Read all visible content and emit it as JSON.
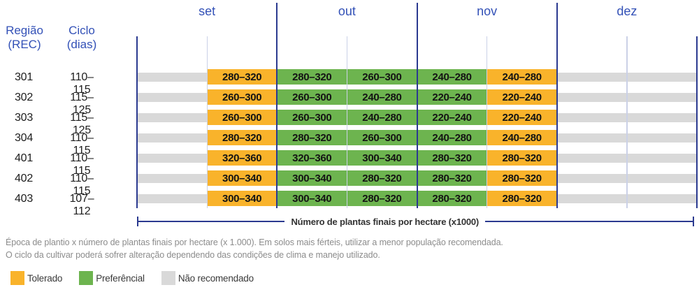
{
  "header": {
    "col1": {
      "line1": "Região",
      "line2": "(REC)"
    },
    "col2": {
      "line1": "Ciclo",
      "line2": "(dias)"
    }
  },
  "months": [
    "set",
    "out",
    "nov",
    "dez"
  ],
  "axis_label": "Número de plantas finais por hectare (x1000)",
  "footnotes": [
    "Época de plantio x número de plantas finais por hectare (x 1.000). Em solos mais férteis, utilizar a menor população recomendada.",
    "O ciclo da cultivar poderá sofrer alteração dependendo das condições de clima e manejo utilizado."
  ],
  "legend": [
    {
      "label": "Tolerado",
      "status": "tolerado"
    },
    {
      "label": "Preferêncial",
      "status": "preferencial"
    },
    {
      "label": "Não recomendado",
      "status": "nao_recomendado"
    }
  ],
  "colors": {
    "tolerado": "#F9B32B",
    "preferencial": "#6DB44F",
    "nao_recomendado": "#D9D9D9",
    "line_dark": "#2B3A90",
    "line_light": "#CBD1E7",
    "text_blue": "#3351B7"
  },
  "chart_data": {
    "type": "heatmap",
    "title": "Época de plantio x número de plantas finais por hectare",
    "x_axis": {
      "months": [
        "set",
        "out",
        "nov",
        "dez"
      ],
      "halves_per_month": 2
    },
    "unit_label": "Número de plantas finais por hectare (x1000)",
    "status_legend": [
      "Tolerado",
      "Preferêncial",
      "Não recomendado"
    ],
    "rows": [
      {
        "rec": "301",
        "ciclo": "110–115",
        "cells": [
          {
            "cols": "set1",
            "status": "nao_recomendado",
            "value": ""
          },
          {
            "cols": "set2",
            "status": "tolerado",
            "value": "280–320"
          },
          {
            "cols": "out1",
            "status": "preferencial",
            "value": "280–320"
          },
          {
            "cols": "out2",
            "status": "preferencial",
            "value": "260–300"
          },
          {
            "cols": "nov1",
            "status": "preferencial",
            "value": "240–280"
          },
          {
            "cols": "nov2",
            "status": "tolerado",
            "value": "240–280"
          },
          {
            "cols": "dez1-dez2",
            "status": "nao_recomendado",
            "value": ""
          }
        ]
      },
      {
        "rec": "302",
        "ciclo": "115–125",
        "cells": [
          {
            "cols": "set1",
            "status": "nao_recomendado",
            "value": ""
          },
          {
            "cols": "set2",
            "status": "tolerado",
            "value": "260–300"
          },
          {
            "cols": "out1",
            "status": "preferencial",
            "value": "260–300"
          },
          {
            "cols": "out2",
            "status": "preferencial",
            "value": "240–280"
          },
          {
            "cols": "nov1",
            "status": "preferencial",
            "value": "220–240"
          },
          {
            "cols": "nov2",
            "status": "tolerado",
            "value": "220–240"
          },
          {
            "cols": "dez1-dez2",
            "status": "nao_recomendado",
            "value": ""
          }
        ]
      },
      {
        "rec": "303",
        "ciclo": "115–125",
        "cells": [
          {
            "cols": "set1",
            "status": "nao_recomendado",
            "value": ""
          },
          {
            "cols": "set2",
            "status": "tolerado",
            "value": "260–300"
          },
          {
            "cols": "out1",
            "status": "preferencial",
            "value": "260–300"
          },
          {
            "cols": "out2",
            "status": "preferencial",
            "value": "240–280"
          },
          {
            "cols": "nov1",
            "status": "preferencial",
            "value": "220–240"
          },
          {
            "cols": "nov2",
            "status": "tolerado",
            "value": "220–240"
          },
          {
            "cols": "dez1-dez2",
            "status": "nao_recomendado",
            "value": ""
          }
        ]
      },
      {
        "rec": "304",
        "ciclo": "110–115",
        "cells": [
          {
            "cols": "set1",
            "status": "nao_recomendado",
            "value": ""
          },
          {
            "cols": "set2",
            "status": "tolerado",
            "value": "280–320"
          },
          {
            "cols": "out1",
            "status": "preferencial",
            "value": "280–320"
          },
          {
            "cols": "out2",
            "status": "preferencial",
            "value": "260–300"
          },
          {
            "cols": "nov1",
            "status": "preferencial",
            "value": "240–280"
          },
          {
            "cols": "nov2",
            "status": "tolerado",
            "value": "240–280"
          },
          {
            "cols": "dez1-dez2",
            "status": "nao_recomendado",
            "value": ""
          }
        ]
      },
      {
        "rec": "401",
        "ciclo": "110–115",
        "cells": [
          {
            "cols": "set1",
            "status": "nao_recomendado",
            "value": ""
          },
          {
            "cols": "set2",
            "status": "tolerado",
            "value": "320–360"
          },
          {
            "cols": "out1",
            "status": "preferencial",
            "value": "320–360"
          },
          {
            "cols": "out2",
            "status": "preferencial",
            "value": "300–340"
          },
          {
            "cols": "nov1",
            "status": "preferencial",
            "value": "280–320"
          },
          {
            "cols": "nov2",
            "status": "tolerado",
            "value": "280–320"
          },
          {
            "cols": "dez1-dez2",
            "status": "nao_recomendado",
            "value": ""
          }
        ]
      },
      {
        "rec": "402",
        "ciclo": "110–115",
        "cells": [
          {
            "cols": "set1",
            "status": "nao_recomendado",
            "value": ""
          },
          {
            "cols": "set2",
            "status": "tolerado",
            "value": "300–340"
          },
          {
            "cols": "out1",
            "status": "preferencial",
            "value": "300–340"
          },
          {
            "cols": "out2",
            "status": "preferencial",
            "value": "280–320"
          },
          {
            "cols": "nov1",
            "status": "preferencial",
            "value": "280–320"
          },
          {
            "cols": "nov2",
            "status": "tolerado",
            "value": "280–320"
          },
          {
            "cols": "dez1-dez2",
            "status": "nao_recomendado",
            "value": ""
          }
        ]
      },
      {
        "rec": "403",
        "ciclo": "107–112",
        "cells": [
          {
            "cols": "set1",
            "status": "nao_recomendado",
            "value": ""
          },
          {
            "cols": "set2",
            "status": "tolerado",
            "value": "300–340"
          },
          {
            "cols": "out1",
            "status": "preferencial",
            "value": "300–340"
          },
          {
            "cols": "out2",
            "status": "preferencial",
            "value": "280–320"
          },
          {
            "cols": "nov1",
            "status": "preferencial",
            "value": "280–320"
          },
          {
            "cols": "nov2",
            "status": "tolerado",
            "value": "280–320"
          },
          {
            "cols": "dez1-dez2",
            "status": "nao_recomendado",
            "value": ""
          }
        ]
      }
    ]
  }
}
